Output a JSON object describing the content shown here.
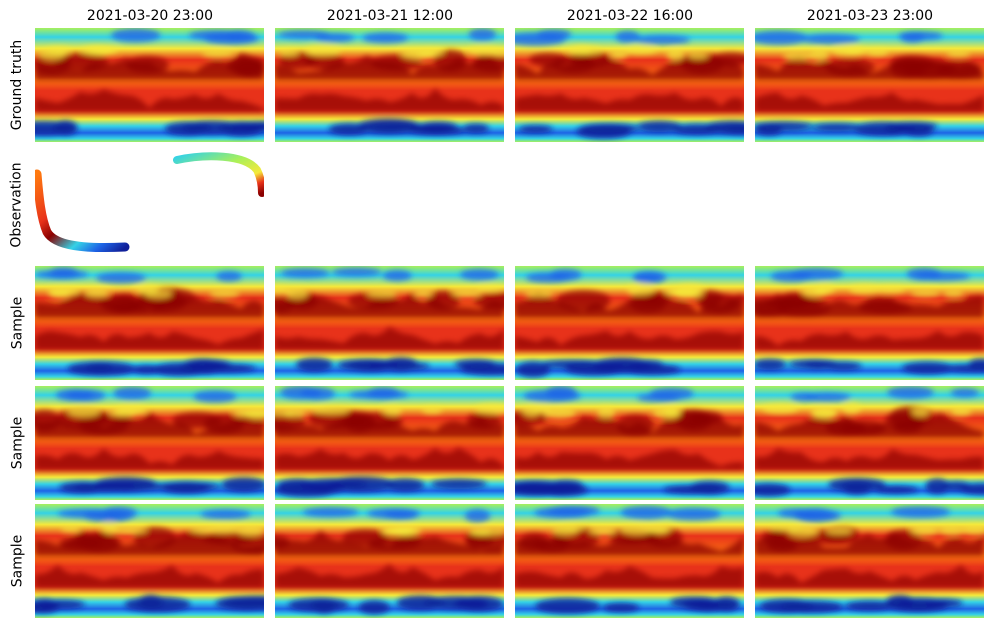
{
  "columns": [
    "2021-03-20 23:00",
    "2021-03-21 12:00",
    "2021-03-22 16:00",
    "2021-03-23 23:00"
  ],
  "rows": [
    "Ground truth",
    "Observation",
    "Sample",
    "Sample",
    "Sample"
  ],
  "colormap": "jet",
  "colors": {
    "dark_red": "#8b0000",
    "red": "#e8321a",
    "orange": "#ff7a10",
    "yellow": "#f5e93a",
    "light_green": "#a8f05a",
    "cyan": "#34d2e6",
    "blue": "#1e64e6",
    "dark_blue": "#10209a"
  }
}
